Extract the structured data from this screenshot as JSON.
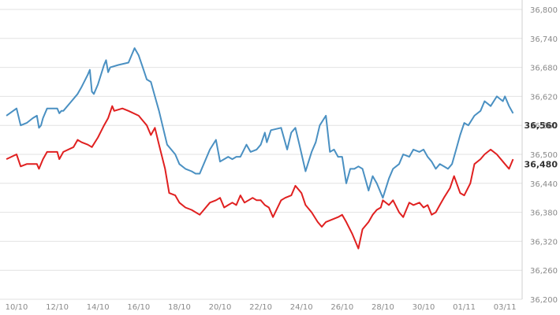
{
  "chart_data": {
    "type": "line",
    "title": "",
    "xlabel": "",
    "ylabel": "",
    "ylim": [
      36200,
      36800
    ],
    "y_ticks": [
      "36,800",
      "36,740",
      "36,680",
      "36,620",
      "36,560",
      "36,500",
      "36,440",
      "36,380",
      "36,320",
      "36,260",
      "36,200"
    ],
    "y_tick_values": [
      36800,
      36740,
      36680,
      36620,
      36560,
      36500,
      36440,
      36380,
      36320,
      36260,
      36200
    ],
    "x_ticks": [
      "10/10",
      "12/10",
      "14/10",
      "16/10",
      "18/10",
      "20/10",
      "22/10",
      "24/10",
      "26/10",
      "28/10",
      "30/10",
      "01/11",
      "03/11"
    ],
    "x_tick_values": [
      0,
      2,
      4,
      6,
      8,
      10,
      12,
      14,
      16,
      18,
      20,
      22,
      24
    ],
    "grid": true,
    "value_labels": [
      "36,560",
      "36,480"
    ],
    "series": [
      {
        "color": "#4a90c2",
        "x": [
          -0.5,
          0,
          0.2,
          0.5,
          0.8,
          1.0,
          1.1,
          1.2,
          1.3,
          1.5,
          2.0,
          2.1,
          2.2,
          2.3,
          2.7,
          3.0,
          3.2,
          3.5,
          3.6,
          3.7,
          3.8,
          4.0,
          4.3,
          4.4,
          4.5,
          4.6,
          5.0,
          5.5,
          5.8,
          6.0,
          6.2,
          6.4,
          6.6,
          6.8,
          7.0,
          7.4,
          7.6,
          7.8,
          8.0,
          8.3,
          8.6,
          8.8,
          9.0,
          9.5,
          9.8,
          10.0,
          10.2,
          10.4,
          10.6,
          10.8,
          11.0,
          11.3,
          11.5,
          11.8,
          12.0,
          12.2,
          12.3,
          12.5,
          13.0,
          13.3,
          13.5,
          13.7,
          13.9,
          14.2,
          14.5,
          14.7,
          14.9,
          15.2,
          15.4,
          15.6,
          15.8,
          16.0,
          16.2,
          16.4,
          16.6,
          16.8,
          17.0,
          17.3,
          17.5,
          17.7,
          18.0,
          18.3,
          18.5,
          18.8,
          19.0,
          19.3,
          19.5,
          19.8,
          20.0,
          20.2,
          20.4,
          20.6,
          20.8,
          21.0,
          21.2,
          21.4,
          21.6,
          21.8,
          22.0,
          22.2,
          22.5,
          22.8,
          23.0,
          23.3,
          23.6,
          23.9,
          24.0,
          24.2,
          24.4
        ],
        "values": [
          36580,
          36595,
          36560,
          36565,
          36575,
          36580,
          36555,
          36560,
          36575,
          36595,
          36595,
          36585,
          36590,
          36590,
          36610,
          36625,
          36640,
          36665,
          36675,
          36630,
          36625,
          36645,
          36685,
          36695,
          36670,
          36680,
          36685,
          36690,
          36720,
          36705,
          36680,
          36655,
          36650,
          36620,
          36590,
          36520,
          36510,
          36500,
          36480,
          36470,
          36465,
          36460,
          36460,
          36510,
          36530,
          36485,
          36490,
          36495,
          36490,
          36495,
          36495,
          36520,
          36505,
          36510,
          36520,
          36545,
          36525,
          36550,
          36555,
          36510,
          36545,
          36555,
          36520,
          36465,
          36505,
          36525,
          36560,
          36580,
          36505,
          36510,
          36495,
          36495,
          36440,
          36470,
          36470,
          36475,
          36470,
          36425,
          36455,
          36440,
          36410,
          36450,
          36470,
          36480,
          36500,
          36495,
          36510,
          36505,
          36510,
          36495,
          36485,
          36470,
          36480,
          36475,
          36470,
          36480,
          36510,
          36540,
          36565,
          36560,
          36580,
          36590,
          36610,
          36600,
          36620,
          36610,
          36620,
          36600,
          36585
        ]
      },
      {
        "color": "#e02020",
        "x": [
          -0.5,
          0,
          0.2,
          0.5,
          1.0,
          1.1,
          1.3,
          1.5,
          2.0,
          2.1,
          2.3,
          2.8,
          3.0,
          3.2,
          3.5,
          3.7,
          4.0,
          4.3,
          4.5,
          4.7,
          4.8,
          5.2,
          5.5,
          6.0,
          6.2,
          6.4,
          6.6,
          6.8,
          7.0,
          7.3,
          7.5,
          7.8,
          8.0,
          8.3,
          8.6,
          9.0,
          9.5,
          9.8,
          10.0,
          10.2,
          10.4,
          10.6,
          10.8,
          11.0,
          11.2,
          11.4,
          11.6,
          11.8,
          12.0,
          12.2,
          12.4,
          12.6,
          13.0,
          13.2,
          13.5,
          13.7,
          14.0,
          14.2,
          14.5,
          14.8,
          15.0,
          15.2,
          15.5,
          15.8,
          16.0,
          16.2,
          16.5,
          16.8,
          17.0,
          17.3,
          17.5,
          17.7,
          17.9,
          18.0,
          18.3,
          18.5,
          18.8,
          19.0,
          19.3,
          19.5,
          19.8,
          20.0,
          20.2,
          20.4,
          20.6,
          20.8,
          21.0,
          21.3,
          21.5,
          21.8,
          22.0,
          22.3,
          22.5,
          22.8,
          23.0,
          23.3,
          23.6,
          23.9,
          24.0,
          24.2,
          24.4
        ],
        "values": [
          36490,
          36500,
          36475,
          36480,
          36480,
          36470,
          36490,
          36505,
          36505,
          36490,
          36505,
          36515,
          36530,
          36525,
          36520,
          36515,
          36535,
          36560,
          36575,
          36600,
          36590,
          36595,
          36590,
          36580,
          36570,
          36560,
          36540,
          36555,
          36520,
          36470,
          36420,
          36415,
          36400,
          36390,
          36385,
          36375,
          36400,
          36405,
          36410,
          36390,
          36395,
          36400,
          36395,
          36415,
          36400,
          36405,
          36410,
          36405,
          36405,
          36395,
          36390,
          36370,
          36405,
          36410,
          36415,
          36435,
          36420,
          36395,
          36380,
          36360,
          36350,
          36360,
          36365,
          36370,
          36375,
          36360,
          36335,
          36305,
          36345,
          36360,
          36375,
          36385,
          36390,
          36405,
          36395,
          36405,
          36380,
          36370,
          36400,
          36395,
          36400,
          36390,
          36395,
          36375,
          36380,
          36395,
          36410,
          36430,
          36455,
          36420,
          36415,
          36440,
          36480,
          36490,
          36500,
          36510,
          36500,
          36485,
          36480,
          36470,
          36490
        ]
      }
    ]
  }
}
